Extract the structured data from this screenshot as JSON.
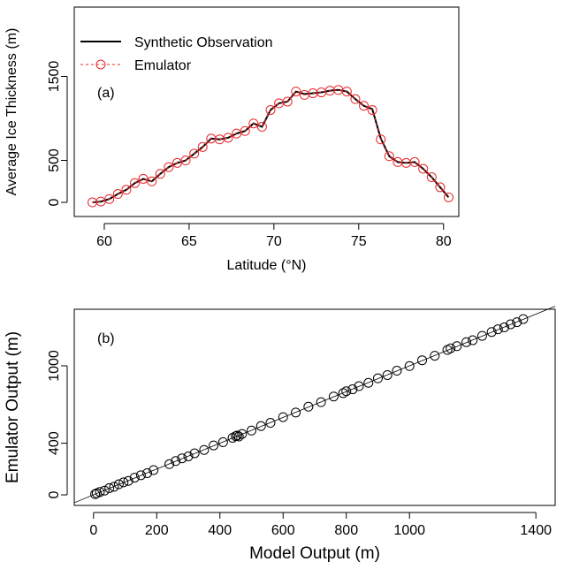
{
  "chart_data": [
    {
      "type": "line",
      "annotation": "(a)",
      "x_label": "Latitude (°N)",
      "y_label": "Average Ice Thickness (m)",
      "xlim": [
        58.23,
        80.9
      ],
      "ylim": [
        -168,
        2326
      ],
      "xticks": [
        60,
        65,
        70,
        75,
        80
      ],
      "yticks": [
        0,
        500,
        1500
      ],
      "legend": "top-left",
      "x": [
        59.3,
        59.8,
        60.3,
        60.8,
        61.3,
        61.8,
        62.3,
        62.8,
        63.3,
        63.8,
        64.3,
        64.8,
        65.3,
        65.8,
        66.3,
        66.8,
        67.3,
        67.8,
        68.3,
        68.8,
        69.3,
        69.8,
        70.3,
        70.8,
        71.3,
        71.8,
        72.3,
        72.8,
        73.3,
        73.8,
        74.3,
        74.8,
        75.3,
        75.8,
        76.3,
        76.8,
        77.3,
        77.8,
        78.3,
        78.8,
        79.3,
        79.8,
        80.3
      ],
      "series": [
        {
          "name": "Synthetic Observation",
          "color": "#000000",
          "style": "line",
          "values": [
            0,
            10,
            40,
            100,
            150,
            230,
            280,
            250,
            340,
            420,
            470,
            500,
            580,
            660,
            760,
            750,
            770,
            820,
            850,
            940,
            900,
            1100,
            1180,
            1200,
            1320,
            1290,
            1300,
            1310,
            1330,
            1340,
            1320,
            1230,
            1150,
            1110,
            760,
            550,
            480,
            470,
            480,
            400,
            300,
            180,
            60
          ]
        },
        {
          "name": "Emulator",
          "color": "#e8262a",
          "style": "dashed-circles",
          "values": [
            0,
            10,
            40,
            100,
            150,
            230,
            280,
            250,
            340,
            420,
            470,
            500,
            580,
            660,
            760,
            750,
            770,
            820,
            850,
            940,
            900,
            1100,
            1180,
            1200,
            1320,
            1280,
            1300,
            1310,
            1330,
            1340,
            1320,
            1230,
            1150,
            1100,
            750,
            550,
            480,
            470,
            480,
            400,
            300,
            180,
            60
          ]
        }
      ]
    },
    {
      "type": "scatter",
      "annotation": "(b)",
      "x_label": "Model Output (m)",
      "y_label": "Emulator Output (m)",
      "xlim": [
        -61,
        1461
      ],
      "ylim": [
        -82,
        1438
      ],
      "xticks": [
        0,
        200,
        400,
        600,
        800,
        1000,
        1400
      ],
      "yticks": [
        0,
        400,
        1000
      ],
      "color": "#000000",
      "reference_line": "y=x",
      "x": [
        5,
        10,
        20,
        35,
        50,
        65,
        80,
        95,
        110,
        130,
        150,
        170,
        190,
        240,
        260,
        280,
        300,
        320,
        350,
        380,
        410,
        440,
        450,
        455,
        460,
        470,
        500,
        530,
        560,
        600,
        640,
        680,
        720,
        760,
        790,
        800,
        820,
        840,
        870,
        900,
        930,
        960,
        1000,
        1040,
        1080,
        1120,
        1130,
        1150,
        1180,
        1200,
        1230,
        1260,
        1280,
        1300,
        1320,
        1340,
        1360
      ],
      "values": [
        5,
        12,
        22,
        33,
        52,
        63,
        82,
        97,
        108,
        133,
        152,
        168,
        192,
        238,
        262,
        283,
        298,
        322,
        348,
        383,
        408,
        442,
        455,
        460,
        452,
        472,
        498,
        533,
        558,
        602,
        638,
        683,
        718,
        762,
        788,
        803,
        818,
        842,
        868,
        903,
        928,
        962,
        998,
        1043,
        1078,
        1123,
        1135,
        1152,
        1183,
        1198,
        1232,
        1262,
        1283,
        1298,
        1322,
        1338,
        1362
      ]
    }
  ]
}
